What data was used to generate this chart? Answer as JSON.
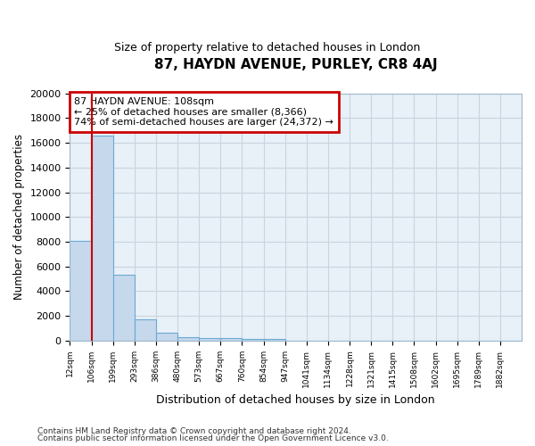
{
  "title": "87, HAYDN AVENUE, PURLEY, CR8 4AJ",
  "subtitle": "Size of property relative to detached houses in London",
  "xlabel": "Distribution of detached houses by size in London",
  "ylabel": "Number of detached properties",
  "bar_color": "#c5d8ec",
  "bar_edge_color": "#6aaad4",
  "background_color": "#e8f0f8",
  "grid_color": "#c8d4e0",
  "bin_labels": [
    "12sqm",
    "106sqm",
    "199sqm",
    "293sqm",
    "386sqm",
    "480sqm",
    "573sqm",
    "667sqm",
    "760sqm",
    "854sqm",
    "947sqm",
    "1041sqm",
    "1134sqm",
    "1228sqm",
    "1321sqm",
    "1415sqm",
    "1508sqm",
    "1602sqm",
    "1695sqm",
    "1789sqm",
    "1882sqm"
  ],
  "bar_heights": [
    8100,
    16600,
    5300,
    1750,
    650,
    300,
    220,
    170,
    150,
    120,
    0,
    0,
    0,
    0,
    0,
    0,
    0,
    0,
    0,
    0,
    0
  ],
  "ylim": [
    0,
    20000
  ],
  "yticks": [
    0,
    2000,
    4000,
    6000,
    8000,
    10000,
    12000,
    14000,
    16000,
    18000,
    20000
  ],
  "vline_x": 0.5,
  "annotation_title": "87 HAYDN AVENUE: 108sqm",
  "annotation_line1": "← 25% of detached houses are smaller (8,366)",
  "annotation_line2": "74% of semi-detached houses are larger (24,372) →",
  "annotation_box_color": "#ffffff",
  "annotation_box_edge": "#cc0000",
  "vline_color": "#cc0000",
  "footer_line1": "Contains HM Land Registry data © Crown copyright and database right 2024.",
  "footer_line2": "Contains public sector information licensed under the Open Government Licence v3.0."
}
